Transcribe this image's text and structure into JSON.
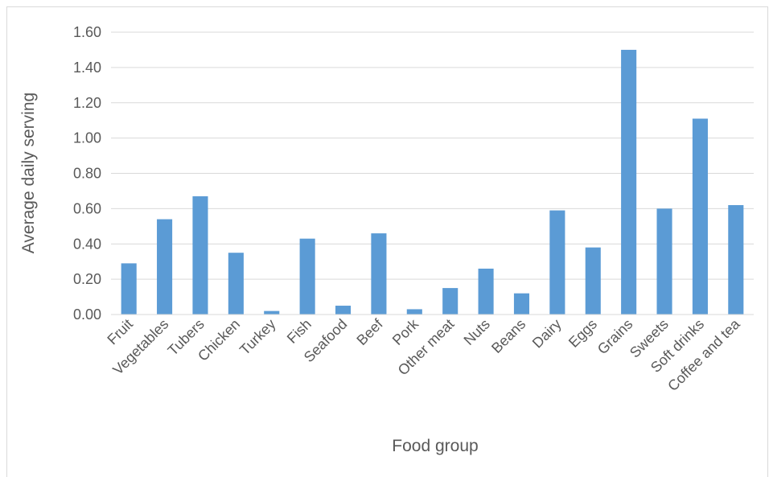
{
  "chart_data": {
    "type": "bar",
    "title": "",
    "xlabel": "Food group",
    "ylabel": "Average daily serving",
    "categories": [
      "Fruit",
      "Vegetables",
      "Tubers",
      "Chicken",
      "Turkey",
      "Fish",
      "Seafood",
      "Beef",
      "Pork",
      "Other meat",
      "Nuts",
      "Beans",
      "Dairy",
      "Eggs",
      "Grains",
      "Sweets",
      "Soft drinks",
      "Coffee and tea"
    ],
    "values": [
      0.29,
      0.54,
      0.67,
      0.35,
      0.02,
      0.43,
      0.05,
      0.46,
      0.03,
      0.15,
      0.26,
      0.12,
      0.59,
      0.38,
      1.5,
      0.6,
      1.11,
      0.62
    ],
    "yticks": [
      "0.00",
      "0.20",
      "0.40",
      "0.60",
      "0.80",
      "1.00",
      "1.20",
      "1.40",
      "1.60"
    ],
    "ylim": [
      0,
      1.6
    ],
    "grid": true,
    "legend": "none",
    "colors": {
      "bar": "#5B9BD5",
      "grid": "#D9D9D9",
      "text": "#595959",
      "frame": "#D9D9D9"
    }
  }
}
